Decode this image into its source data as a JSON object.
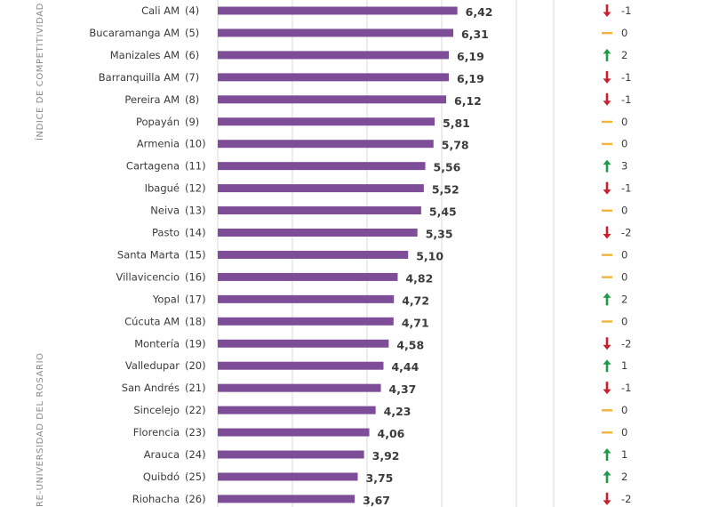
{
  "side_labels": {
    "top": "ÍNDICE DE COMPETITIVIDAD D",
    "bottom": "RE-UNIVERSIDAD DEL ROSARIO"
  },
  "colors": {
    "bar": "#7e4d98",
    "up": "#1f9a4b",
    "down": "#c8202f",
    "same": "#f3b23a",
    "grid": "#d9d9d9"
  },
  "chart_data": {
    "type": "bar",
    "orientation": "horizontal",
    "categories": [
      "Cali AM",
      "Bucaramanga AM",
      "Manizales AM",
      "Barranquilla AM",
      "Pereira AM",
      "Popayán",
      "Armenia",
      "Cartagena",
      "Ibagué",
      "Neiva",
      "Pasto",
      "Santa Marta",
      "Villavicencio",
      "Yopal",
      "Cúcuta AM",
      "Montería",
      "Valledupar",
      "San Andrés",
      "Sincelejo",
      "Florencia",
      "Arauca",
      "Quibdó",
      "Riohacha"
    ],
    "ranks": [
      "(4)",
      "(5)",
      "(6)",
      "(7)",
      "(8)",
      "(9)",
      "(10)",
      "(11)",
      "(12)",
      "(13)",
      "(14)",
      "(15)",
      "(16)",
      "(17)",
      "(18)",
      "(19)",
      "(20)",
      "(21)",
      "(22)",
      "(23)",
      "(24)",
      "(25)",
      "(26)"
    ],
    "values": [
      6.42,
      6.31,
      6.19,
      6.19,
      6.12,
      5.81,
      5.78,
      5.56,
      5.52,
      5.45,
      5.35,
      5.1,
      4.82,
      4.72,
      4.71,
      4.58,
      4.44,
      4.37,
      4.23,
      4.06,
      3.92,
      3.75,
      3.67
    ],
    "value_labels": [
      "6,42",
      "6,31",
      "6,19",
      "6,19",
      "6,12",
      "5,81",
      "5,78",
      "5,56",
      "5,52",
      "5,45",
      "5,35",
      "5,10",
      "4,82",
      "4,72",
      "4,71",
      "4,58",
      "4,44",
      "4,37",
      "4,23",
      "4,06",
      "3,92",
      "3,75",
      "3,67"
    ],
    "rank_change": [
      -1,
      0,
      2,
      -1,
      -1,
      0,
      0,
      3,
      -1,
      0,
      -2,
      0,
      0,
      2,
      0,
      -2,
      1,
      -1,
      0,
      0,
      1,
      2,
      -2
    ],
    "xlim": [
      0,
      10
    ],
    "grid": true
  }
}
